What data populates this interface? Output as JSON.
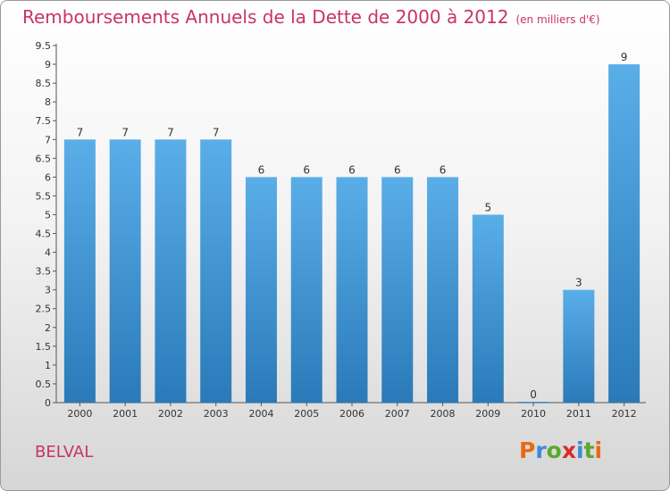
{
  "title": "Remboursements Annuels de la Dette de 2000 à 2012",
  "unit": "(en milliers d'€)",
  "commune": "BELVAL",
  "logo": {
    "letters": [
      "P",
      "r",
      "o",
      "x",
      "i",
      "t",
      "i"
    ],
    "colors": [
      "#e86a16",
      "#3b8ad8",
      "#5aa82e",
      "#d92b2b",
      "#3b8ad8",
      "#5aa82e",
      "#e86a16"
    ]
  },
  "colors": {
    "bar_top": "#5aaee8",
    "bar_bottom": "#2a7ab9",
    "axis": "#555555",
    "grid": "#bbbbbb"
  },
  "chart_data": {
    "type": "bar",
    "title": "Remboursements Annuels de la Dette de 2000 à 2012",
    "categories": [
      "2000",
      "2001",
      "2002",
      "2003",
      "2004",
      "2005",
      "2006",
      "2007",
      "2008",
      "2009",
      "2010",
      "2011",
      "2012"
    ],
    "values": [
      7,
      7,
      7,
      7,
      6,
      6,
      6,
      6,
      6,
      5,
      0,
      3,
      9
    ],
    "data_labels": [
      "7",
      "7",
      "7",
      "7",
      "6",
      "6",
      "6",
      "6",
      "6",
      "5",
      "0",
      "3",
      "9"
    ],
    "ylim": [
      0,
      9.5
    ],
    "yticks": [
      "0",
      "0.5",
      "1",
      "1.5",
      "2",
      "2.5",
      "3",
      "3.5",
      "4",
      "4.5",
      "5",
      "5.5",
      "6",
      "6.5",
      "7",
      "7.5",
      "8",
      "8.5",
      "9",
      "9.5"
    ],
    "grid": false
  }
}
